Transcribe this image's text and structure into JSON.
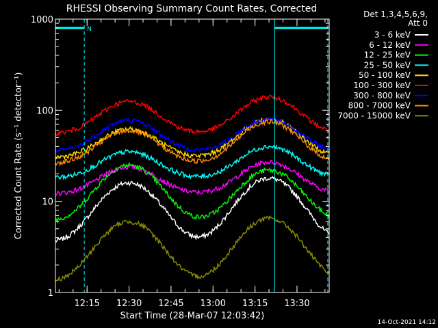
{
  "chart_data": {
    "type": "line",
    "title": "RHESSI Observing Summary Count Rates, Corrected",
    "xlabel": "Start Time (28-Mar-07 12:03:42)",
    "ylabel": "Corrected Count Rate (s⁻¹ detector⁻¹)",
    "ylog": true,
    "ylim": [
      1,
      1000
    ],
    "xlim": [
      "12:03:42",
      "13:41:30"
    ],
    "yticks": [
      {
        "value": 1,
        "label": "1"
      },
      {
        "value": 10,
        "label": "10"
      },
      {
        "value": 100,
        "label": "100"
      },
      {
        "value": 1000,
        "label": "1000"
      }
    ],
    "xticks": [
      {
        "value": "12:15",
        "label": "12:15"
      },
      {
        "value": "12:30",
        "label": "12:30"
      },
      {
        "value": "12:45",
        "label": "12:45"
      },
      {
        "value": "13:00",
        "label": "13:00"
      },
      {
        "value": "13:15",
        "label": "13:15"
      },
      {
        "value": "13:30",
        "label": "13:30"
      }
    ],
    "legend_header": [
      "Det 1,3,4,5,6,9,",
      "Att 0"
    ],
    "legend_position": "right",
    "series": [
      {
        "name": "3 - 6 keV",
        "color": "#ffffff",
        "base": 3.5,
        "peaks": [
          16,
          18
        ]
      },
      {
        "name": "6 - 12 keV",
        "color": "#ff00ff",
        "base": 12,
        "peaks": [
          24,
          27
        ]
      },
      {
        "name": "12 - 25 keV",
        "color": "#00ff00",
        "base": 6,
        "peaks": [
          25,
          22
        ]
      },
      {
        "name": "25 - 50 keV",
        "color": "#00ffff",
        "base": 18,
        "peaks": [
          35,
          40
        ]
      },
      {
        "name": "50 - 100 keV",
        "color": "#ffd700",
        "base": 30,
        "peaks": [
          62,
          80
        ]
      },
      {
        "name": "100 - 300 keV",
        "color": "#ff0000",
        "base": 55,
        "peaks": [
          125,
          140
        ]
      },
      {
        "name": "300 - 800 keV",
        "color": "#0000ff",
        "base": 35,
        "peaks": [
          78,
          80
        ]
      },
      {
        "name": "800 - 7000 keV",
        "color": "#ff8c00",
        "base": 26,
        "peaks": [
          60,
          75
        ]
      },
      {
        "name": "7000 - 15000 keV",
        "color": "#8b8b00",
        "base": 1.3,
        "peaks": [
          6,
          6.5
        ]
      }
    ],
    "peak_times": [
      "12:30",
      "13:20"
    ],
    "peak_width_min": 9,
    "markers": {
      "night_spans": [
        [
          "12:03:42",
          "12:14"
        ],
        [
          "13:22",
          "13:41"
        ]
      ],
      "night_level": 800,
      "night_label": "N",
      "dashed_times": [
        "12:14",
        "13:41"
      ],
      "solid_time": "13:22",
      "color": "#00ffff"
    }
  },
  "timestamp": "14-Oct-2021 14:12"
}
